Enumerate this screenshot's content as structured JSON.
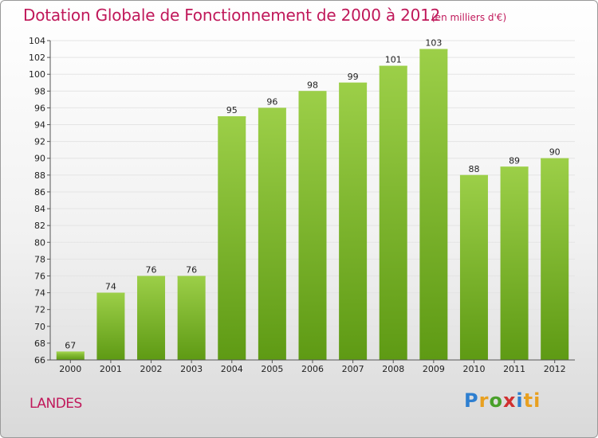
{
  "header": {
    "title": "Dotation Globale de Fonctionnement de 2000 à 2012",
    "subtitle": "(en milliers d'€)"
  },
  "footer": {
    "commune": "LANDES",
    "logo": [
      "P",
      "r",
      "o",
      "x",
      "i",
      "ti"
    ]
  },
  "colors": {
    "bar_top": "#9ccf48",
    "bar_bottom": "#5e9a14",
    "title": "#c0185a",
    "grid": "#e4e4e4"
  },
  "chart_data": {
    "type": "bar",
    "title": "Dotation Globale de Fonctionnement de 2000 à 2012",
    "subtitle": "(en milliers d'€)",
    "xlabel": "",
    "ylabel": "",
    "categories": [
      "2000",
      "2001",
      "2002",
      "2003",
      "2004",
      "2005",
      "2006",
      "2007",
      "2008",
      "2009",
      "2010",
      "2011",
      "2012"
    ],
    "values": [
      67,
      74,
      76,
      76,
      95,
      96,
      98,
      99,
      101,
      103,
      88,
      89,
      90
    ],
    "ylim": [
      66,
      104
    ],
    "ytick_step": 2,
    "grid": true,
    "data_labels": true
  }
}
